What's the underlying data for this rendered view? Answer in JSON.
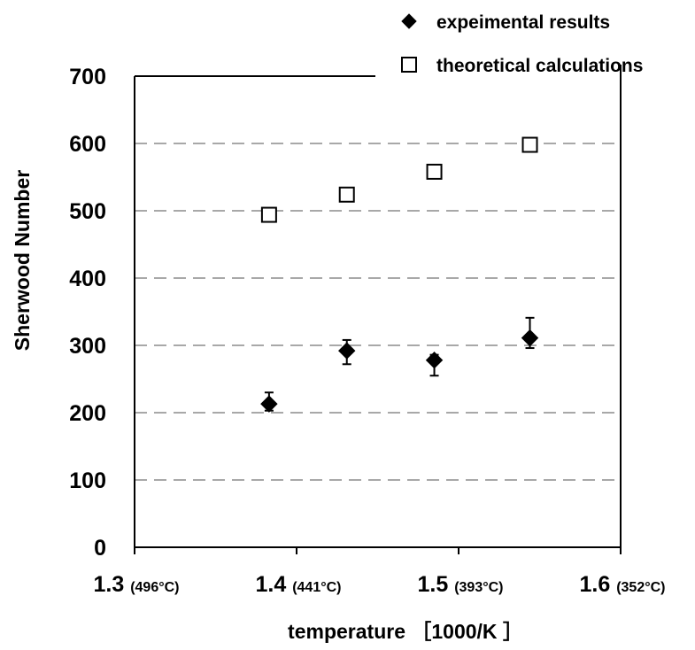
{
  "chart_data": {
    "type": "scatter",
    "title": "",
    "xlabel": "temperature ［1000/K ］",
    "ylabel": "Sherwood Number",
    "xlim": [
      1.3,
      1.6
    ],
    "ylim": [
      0,
      700
    ],
    "x_ticks": [
      {
        "value": 1.3,
        "label": "1.3",
        "sublabel": "(496°C)"
      },
      {
        "value": 1.4,
        "label": "1.4",
        "sublabel": "(441°C)"
      },
      {
        "value": 1.5,
        "label": "1.5",
        "sublabel": "(393°C)"
      },
      {
        "value": 1.6,
        "label": "1.6",
        "sublabel": "(352°C)"
      }
    ],
    "y_ticks": [
      {
        "value": 0,
        "label": "0"
      },
      {
        "value": 100,
        "label": "100"
      },
      {
        "value": 200,
        "label": "200"
      },
      {
        "value": 300,
        "label": "300"
      },
      {
        "value": 400,
        "label": "400"
      },
      {
        "value": 500,
        "label": "500"
      },
      {
        "value": 600,
        "label": "600"
      },
      {
        "value": 700,
        "label": "700"
      }
    ],
    "grid": "horizontal dashed",
    "legend_position": "top-right",
    "series": [
      {
        "name": "expeimental results",
        "marker": "filled-diamond",
        "color": "#000000",
        "points": [
          {
            "x": 1.383,
            "y": 213,
            "err_low": 10,
            "err_high": 17
          },
          {
            "x": 1.431,
            "y": 292,
            "err_low": 20,
            "err_high": 16
          },
          {
            "x": 1.485,
            "y": 278,
            "err_low": 23,
            "err_high": 8
          },
          {
            "x": 1.544,
            "y": 311,
            "err_low": 15,
            "err_high": 30
          }
        ]
      },
      {
        "name": "theoretical calculations",
        "marker": "open-square",
        "color": "#000000",
        "points": [
          {
            "x": 1.383,
            "y": 494
          },
          {
            "x": 1.431,
            "y": 524
          },
          {
            "x": 1.485,
            "y": 558
          },
          {
            "x": 1.544,
            "y": 598
          }
        ]
      }
    ]
  }
}
